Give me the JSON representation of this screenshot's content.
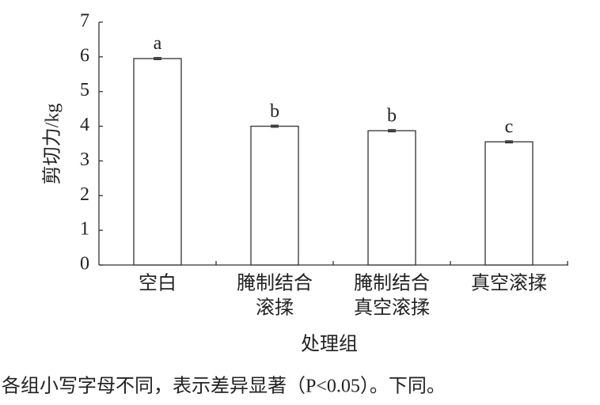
{
  "chart_data": {
    "type": "bar",
    "categories": [
      [
        "空白"
      ],
      [
        "腌制结合",
        "滚揉"
      ],
      [
        "腌制结合",
        "真空滚揉"
      ],
      [
        "真空滚揉"
      ]
    ],
    "values": [
      5.95,
      4.0,
      3.87,
      3.55
    ],
    "errors": [
      0.03,
      0.03,
      0.03,
      0.03
    ],
    "letters": [
      "a",
      "b",
      "b",
      "c"
    ],
    "color": "#ffffff",
    "ylim": [
      0,
      7
    ],
    "yticks": [
      0,
      1,
      2,
      3,
      4,
      5,
      6,
      7
    ],
    "y_label": "剪切力/kg",
    "x_label": "处理组",
    "note": "各组小写字母不同，表示差异显著（P<0.05）。下同。"
  }
}
